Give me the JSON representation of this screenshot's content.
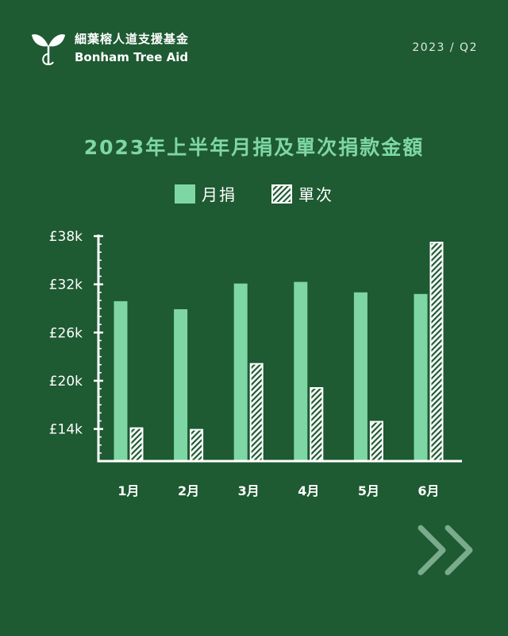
{
  "brand": {
    "name_zh": "細葉榕人道支援基金",
    "name_en": "Bonham Tree Aid",
    "logo_icon": "sprout-icon"
  },
  "period": "2023 / Q2",
  "colors": {
    "background": "#1e5a32",
    "monthly": "#7fd6a5",
    "single_fill": "#ffffff",
    "single_hatch": "#1e5a32",
    "axis": "#ffffff",
    "next_icon": "#7aab8c"
  },
  "nav": {
    "next_icon": "double-chevron-right-icon"
  },
  "chart_data": {
    "type": "bar",
    "title": "2023年上半年月捐及單次捐款金額",
    "categories": [
      "1月",
      "2月",
      "3月",
      "4月",
      "5月",
      "6月"
    ],
    "series": [
      {
        "name": "月捐",
        "values": [
          29900,
          28900,
          32100,
          32300,
          31000,
          30800
        ]
      },
      {
        "name": "單次",
        "values": [
          14200,
          14000,
          22200,
          19200,
          15000,
          37300
        ]
      }
    ],
    "ylim": [
      10000,
      38000
    ],
    "yticks": [
      14000,
      20000,
      26000,
      32000,
      38000
    ],
    "ytick_labels": [
      "£14k",
      "£20k",
      "£26k",
      "£32k",
      "£38k"
    ],
    "legend_position": "top-center",
    "grid": false
  }
}
